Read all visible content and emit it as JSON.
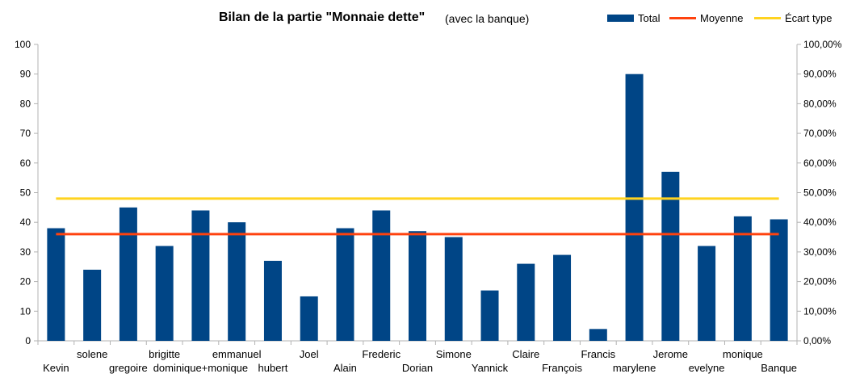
{
  "chart_data": {
    "type": "bar",
    "title": "Bilan de la partie \"Monnaie dette\"",
    "subtitle": "(avec la banque)",
    "categories": [
      "Kevin",
      "solene",
      "gregoire",
      "brigitte",
      "dominique+monique",
      "emmanuel",
      "hubert",
      "Joel",
      "Alain",
      "Frederic",
      "Dorian",
      "Simone",
      "Yannick",
      "Claire",
      "François",
      "Francis",
      "marylene",
      "Jerome",
      "evelyne",
      "monique",
      "Banque"
    ],
    "series": [
      {
        "name": "Total",
        "type": "bar",
        "color": "#004586",
        "values": [
          38,
          24,
          45,
          32,
          44,
          40,
          27,
          15,
          38,
          44,
          37,
          35,
          17,
          26,
          29,
          4,
          90,
          57,
          32,
          42,
          41
        ]
      },
      {
        "name": "Moyenne",
        "type": "line",
        "color": "#ff420e",
        "value": 36
      },
      {
        "name": "Écart type",
        "type": "line",
        "color": "#ffd320",
        "value": 48
      }
    ],
    "ylim": [
      0,
      100
    ],
    "yticks": [
      "0",
      "10",
      "20",
      "30",
      "40",
      "50",
      "60",
      "70",
      "80",
      "90",
      "100"
    ],
    "y2ticks": [
      "0,00%",
      "10,00%",
      "20,00%",
      "30,00%",
      "40,00%",
      "50,00%",
      "60,00%",
      "70,00%",
      "80,00%",
      "90,00%",
      "100,00%"
    ],
    "grid": false,
    "legend_position": "top-right"
  }
}
